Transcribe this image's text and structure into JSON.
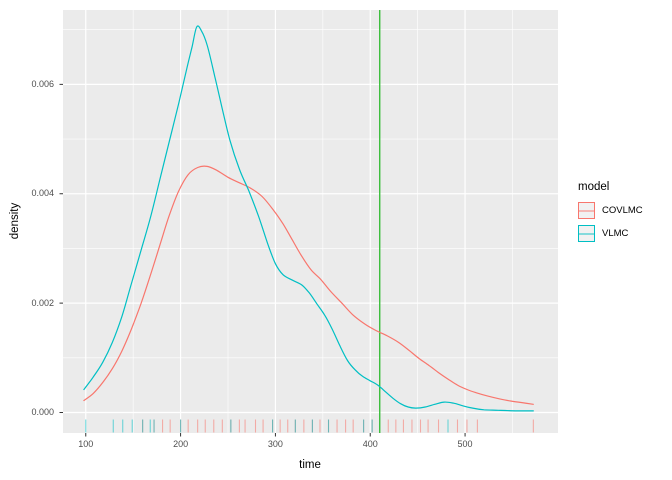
{
  "chart_data": {
    "type": "line",
    "title": "",
    "xlabel": "time",
    "ylabel": "density",
    "xlim": [
      76,
      598
    ],
    "ylim": [
      -0.000375,
      0.00736
    ],
    "grid": true,
    "x_ticks": [
      100,
      200,
      300,
      400,
      500
    ],
    "x_tick_labels": [
      "100",
      "200",
      "300",
      "400",
      "500"
    ],
    "x_minor_ticks": [
      150,
      250,
      350,
      450,
      550
    ],
    "y_ticks": [
      0.0,
      0.002,
      0.004,
      0.006
    ],
    "y_tick_labels": [
      "0.000",
      "0.002",
      "0.004",
      "0.006"
    ],
    "y_minor_ticks": [
      0.001,
      0.003,
      0.005,
      0.007
    ],
    "vline": {
      "x": 410,
      "color": "#3bbd3b"
    },
    "legend": {
      "title": "model",
      "position": "right",
      "entries": [
        "COVLMC",
        "VLMC"
      ]
    },
    "series": [
      {
        "name": "COVLMC",
        "color": "#F8766D",
        "points": [
          [
            98,
            0.00022
          ],
          [
            108,
            0.00035
          ],
          [
            118,
            0.00055
          ],
          [
            128,
            0.0008
          ],
          [
            138,
            0.00112
          ],
          [
            148,
            0.00152
          ],
          [
            158,
            0.00198
          ],
          [
            168,
            0.0025
          ],
          [
            178,
            0.00305
          ],
          [
            188,
            0.0036
          ],
          [
            198,
            0.00405
          ],
          [
            208,
            0.00435
          ],
          [
            218,
            0.00448
          ],
          [
            228,
            0.0045
          ],
          [
            238,
            0.00443
          ],
          [
            250,
            0.0043
          ],
          [
            262,
            0.0042
          ],
          [
            274,
            0.0041
          ],
          [
            286,
            0.00395
          ],
          [
            298,
            0.0037
          ],
          [
            308,
            0.00345
          ],
          [
            318,
            0.00315
          ],
          [
            328,
            0.00285
          ],
          [
            338,
            0.0026
          ],
          [
            348,
            0.00243
          ],
          [
            358,
            0.00222
          ],
          [
            370,
            0.002
          ],
          [
            382,
            0.00178
          ],
          [
            394,
            0.00162
          ],
          [
            406,
            0.0015
          ],
          [
            418,
            0.0014
          ],
          [
            430,
            0.00128
          ],
          [
            442,
            0.00112
          ],
          [
            452,
            0.00098
          ],
          [
            462,
            0.00086
          ],
          [
            472,
            0.00073
          ],
          [
            482,
            0.00061
          ],
          [
            492,
            0.0005
          ],
          [
            502,
            0.00042
          ],
          [
            512,
            0.00036
          ],
          [
            524,
            0.0003
          ],
          [
            536,
            0.00025
          ],
          [
            548,
            0.00021
          ],
          [
            560,
            0.00018
          ],
          [
            572,
            0.00015
          ]
        ],
        "rug_times": [
          160,
          172,
          181,
          189,
          200,
          208,
          218,
          226,
          235,
          244,
          253,
          262,
          268,
          279,
          287,
          297,
          305,
          313,
          321,
          330,
          339,
          347,
          356,
          365,
          374,
          382,
          393,
          402,
          419,
          427,
          435,
          444,
          453,
          461,
          472,
          492,
          502,
          513,
          572
        ]
      },
      {
        "name": "VLMC",
        "color": "#00BFC4",
        "points": [
          [
            98,
            0.00042
          ],
          [
            108,
            0.00065
          ],
          [
            118,
            0.00092
          ],
          [
            128,
            0.00128
          ],
          [
            138,
            0.00175
          ],
          [
            148,
            0.00235
          ],
          [
            158,
            0.00295
          ],
          [
            168,
            0.00355
          ],
          [
            178,
            0.00425
          ],
          [
            188,
            0.00495
          ],
          [
            198,
            0.00565
          ],
          [
            206,
            0.00625
          ],
          [
            212,
            0.00668
          ],
          [
            217,
            0.00705
          ],
          [
            222,
            0.00698
          ],
          [
            228,
            0.00672
          ],
          [
            236,
            0.00615
          ],
          [
            244,
            0.00555
          ],
          [
            252,
            0.00498
          ],
          [
            262,
            0.00445
          ],
          [
            272,
            0.00405
          ],
          [
            282,
            0.0036
          ],
          [
            292,
            0.00308
          ],
          [
            300,
            0.00272
          ],
          [
            308,
            0.00252
          ],
          [
            318,
            0.00242
          ],
          [
            328,
            0.00233
          ],
          [
            336,
            0.00218
          ],
          [
            344,
            0.00198
          ],
          [
            352,
            0.00178
          ],
          [
            360,
            0.00152
          ],
          [
            368,
            0.00122
          ],
          [
            376,
            0.00095
          ],
          [
            384,
            0.00078
          ],
          [
            392,
            0.00066
          ],
          [
            400,
            0.00058
          ],
          [
            408,
            0.0005
          ],
          [
            416,
            0.00038
          ],
          [
            424,
            0.00026
          ],
          [
            432,
            0.00016
          ],
          [
            440,
            0.0001
          ],
          [
            448,
            8e-05
          ],
          [
            458,
            0.0001
          ],
          [
            468,
            0.00015
          ],
          [
            478,
            0.00019
          ],
          [
            488,
            0.00017
          ],
          [
            498,
            0.00012
          ],
          [
            508,
            8e-05
          ],
          [
            520,
            5e-05
          ],
          [
            535,
            4e-05
          ],
          [
            555,
            3e-05
          ],
          [
            572,
            3e-05
          ]
        ],
        "rug_times": [
          100,
          129,
          139,
          149,
          160,
          168,
          172,
          200,
          253,
          297,
          321,
          339,
          356,
          393,
          402,
          482
        ]
      }
    ],
    "style": {
      "panel_bg": "#ebebeb",
      "grid_color": "#ffffff",
      "tick_mark_color": "#333333",
      "tick_label_color": "#4d4d4d",
      "curve_width": 1.2,
      "rug_opacity": 0.55,
      "legend_key_bg": "#f1f1f1"
    }
  }
}
